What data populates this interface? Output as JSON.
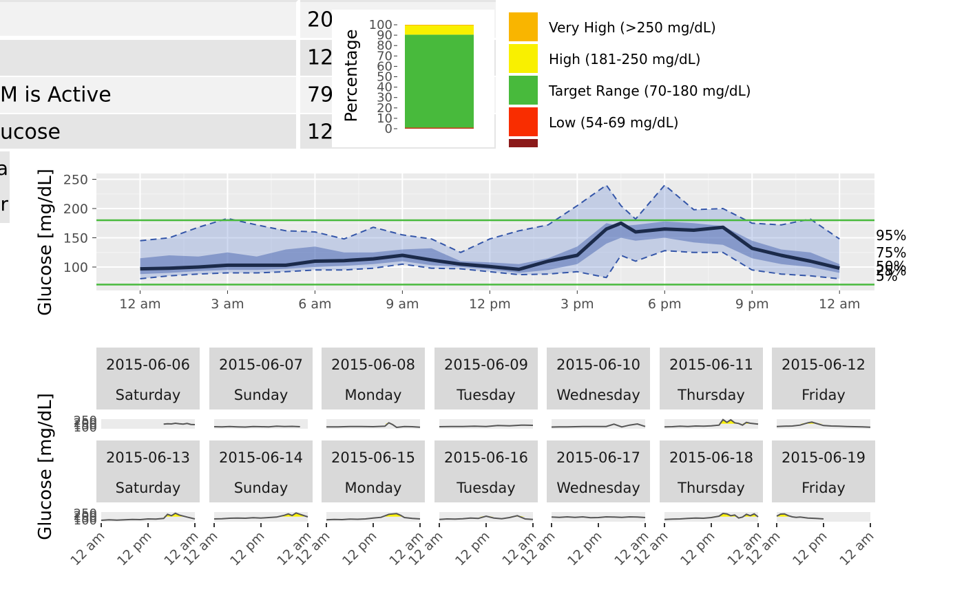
{
  "stats_table": {
    "rows": [
      {
        "label": "",
        "value": "20"
      },
      {
        "label": "",
        "value": "12"
      },
      {
        "label": "M is Active",
        "value": "79"
      },
      {
        "label": "ucose",
        "value": "12"
      }
    ],
    "extra_labels": [
      "a",
      "r"
    ]
  },
  "range_bar": {
    "ylabel": "Percentage",
    "ticks": [
      "0",
      "10",
      "20",
      "30",
      "40",
      "50",
      "60",
      "70",
      "80",
      "90",
      "100"
    ],
    "segments": [
      {
        "name": "Very Low",
        "percent": 0.4,
        "color": "#8b1a1a"
      },
      {
        "name": "Low",
        "percent": 0.6,
        "color": "#f92d00"
      },
      {
        "name": "Target Range",
        "percent": 89.5,
        "color": "#48ba3c"
      },
      {
        "name": "High",
        "percent": 8.8,
        "color": "#f9f000"
      },
      {
        "name": "Very High",
        "percent": 0.7,
        "color": "#f9b500"
      }
    ]
  },
  "legend": {
    "items": [
      {
        "label": "Very High (>250 mg/dL)",
        "color": "#f9b500"
      },
      {
        "label": "High (181-250 mg/dL)",
        "color": "#f9f000"
      },
      {
        "label": "Target Range (70-180 mg/dL)",
        "color": "#48ba3c"
      },
      {
        "label": "Low (54-69 mg/dL)",
        "color": "#f92d00"
      },
      {
        "label": "",
        "color": "#8b1a1a"
      }
    ]
  },
  "chart_data": [
    {
      "type": "area",
      "title": "",
      "ylabel": "Glucose [mg/dL]",
      "xlabel": "",
      "x_unit": "hours since midnight",
      "ylim": [
        60,
        260
      ],
      "xlim": [
        -1.5,
        25.2
      ],
      "x_tick_values": [
        0,
        3,
        6,
        9,
        12,
        15,
        18,
        21,
        24
      ],
      "x_tick_labels": [
        "12 am",
        "3 am",
        "6 am",
        "9 am",
        "12 pm",
        "3 pm",
        "6 pm",
        "9 pm",
        "12 am"
      ],
      "y_ticks": [
        100,
        150,
        200,
        250
      ],
      "target_lines": [
        70,
        180
      ],
      "percentile_labels": [
        "95%",
        "75%",
        "50%",
        "25%",
        "5%"
      ],
      "x": [
        0,
        1,
        2,
        3,
        4,
        5,
        6,
        7,
        8,
        9,
        10,
        11,
        12,
        13,
        14,
        15,
        16,
        16.5,
        17,
        18,
        19,
        20,
        21,
        22,
        23,
        24
      ],
      "series": [
        {
          "name": "p95",
          "values": [
            145,
            150,
            168,
            183,
            172,
            162,
            160,
            148,
            168,
            155,
            148,
            125,
            148,
            162,
            172,
            205,
            240,
            205,
            182,
            240,
            198,
            200,
            175,
            172,
            182,
            148
          ]
        },
        {
          "name": "p75",
          "values": [
            115,
            120,
            118,
            125,
            118,
            130,
            135,
            125,
            125,
            130,
            132,
            110,
            108,
            105,
            115,
            135,
            175,
            170,
            172,
            178,
            175,
            170,
            145,
            130,
            125,
            105
          ]
        },
        {
          "name": "p50",
          "values": [
            97,
            98,
            100,
            103,
            103,
            103,
            110,
            111,
            114,
            120,
            112,
            105,
            101,
            96,
            110,
            120,
            165,
            175,
            160,
            165,
            163,
            168,
            132,
            120,
            110,
            98
          ]
        },
        {
          "name": "p25",
          "values": [
            88,
            90,
            93,
            95,
            95,
            97,
            100,
            102,
            105,
            110,
            103,
            100,
            96,
            90,
            95,
            105,
            140,
            150,
            145,
            150,
            142,
            138,
            115,
            105,
            100,
            90
          ]
        },
        {
          "name": "p5",
          "values": [
            80,
            85,
            88,
            90,
            90,
            92,
            95,
            95,
            98,
            105,
            98,
            97,
            92,
            87,
            88,
            92,
            82,
            120,
            110,
            128,
            125,
            125,
            95,
            88,
            85,
            80
          ]
        }
      ]
    },
    {
      "type": "line",
      "title": "",
      "ylabel": "Glucose [mg/dL]",
      "y_ticks": [
        100,
        150,
        200,
        250
      ],
      "y_tick_labels": [
        "100",
        "150",
        "200",
        "250"
      ],
      "ylim": [
        70,
        280
      ],
      "x_unit": "hours since midnight",
      "x_tick_labels": [
        "12 am",
        "12 pm",
        "12 am"
      ],
      "x_tick_values": [
        0,
        12,
        24
      ],
      "facets": [
        {
          "date": "2015-06-06",
          "weekday": "Saturday",
          "x": [
            16,
            17,
            18,
            19,
            20,
            21,
            22,
            23,
            24
          ],
          "values": [
            170,
            180,
            175,
            190,
            178,
            172,
            185,
            165,
            160
          ]
        },
        {
          "date": "2015-06-07",
          "weekday": "Sunday",
          "x": [
            0,
            2,
            4,
            6,
            8,
            10,
            12,
            14,
            16,
            18,
            20,
            22
          ],
          "values": [
            115,
            110,
            118,
            112,
            108,
            120,
            115,
            110,
            125,
            118,
            122,
            115
          ]
        },
        {
          "date": "2015-06-08",
          "weekday": "Monday",
          "x": [
            0,
            3,
            6,
            9,
            12,
            15,
            16,
            17,
            18,
            20,
            22,
            24
          ],
          "values": [
            110,
            112,
            118,
            120,
            115,
            125,
            200,
            160,
            100,
            120,
            115,
            105
          ]
        },
        {
          "date": "2015-06-09",
          "weekday": "Tuesday",
          "x": [
            0,
            3,
            6,
            9,
            12,
            15,
            18,
            21,
            24
          ],
          "values": [
            115,
            120,
            118,
            125,
            120,
            140,
            135,
            150,
            145
          ]
        },
        {
          "date": "2015-06-10",
          "weekday": "Wednesday",
          "x": [
            0,
            2,
            4,
            6,
            8,
            14,
            16,
            18,
            20,
            22,
            24
          ],
          "values": [
            108,
            112,
            110,
            115,
            118,
            120,
            170,
            110,
            150,
            175,
            120
          ]
        },
        {
          "date": "2015-06-11",
          "weekday": "Thursday",
          "x": [
            0,
            2,
            4,
            6,
            8,
            10,
            12,
            14,
            15,
            16,
            17,
            18,
            19,
            20,
            21,
            22,
            24
          ],
          "values": [
            110,
            115,
            125,
            120,
            130,
            125,
            135,
            150,
            270,
            210,
            265,
            200,
            185,
            150,
            210,
            190,
            170
          ]
        },
        {
          "date": "2015-06-12",
          "weekday": "Friday",
          "x": [
            0,
            2,
            4,
            6,
            8,
            9,
            10,
            12,
            14,
            16,
            18,
            20,
            22,
            24
          ],
          "values": [
            120,
            125,
            130,
            150,
            200,
            215,
            190,
            140,
            130,
            125,
            120,
            115,
            110,
            105
          ]
        },
        {
          "date": "2015-06-13",
          "weekday": "Saturday",
          "x": [
            0,
            2,
            4,
            6,
            8,
            10,
            12,
            14,
            16,
            17,
            18,
            19,
            20,
            22,
            24
          ],
          "values": [
            100,
            110,
            105,
            112,
            120,
            115,
            130,
            125,
            140,
            230,
            200,
            255,
            215,
            170,
            130
          ]
        },
        {
          "date": "2015-06-14",
          "weekday": "Sunday",
          "x": [
            0,
            2,
            4,
            6,
            8,
            10,
            12,
            14,
            16,
            18,
            19,
            20,
            21,
            22,
            24
          ],
          "values": [
            130,
            135,
            145,
            150,
            145,
            155,
            150,
            160,
            170,
            210,
            240,
            205,
            260,
            230,
            175
          ]
        },
        {
          "date": "2015-06-15",
          "weekday": "Monday",
          "x": [
            0,
            2,
            4,
            6,
            8,
            10,
            12,
            14,
            16,
            18,
            19,
            20,
            22,
            24
          ],
          "values": [
            110,
            118,
            115,
            125,
            122,
            130,
            150,
            165,
            230,
            245,
            210,
            160,
            140,
            130
          ]
        },
        {
          "date": "2015-06-16",
          "weekday": "Tuesday",
          "x": [
            0,
            2,
            4,
            6,
            8,
            10,
            12,
            14,
            16,
            18,
            20,
            22,
            24
          ],
          "values": [
            120,
            130,
            125,
            135,
            150,
            140,
            190,
            150,
            135,
            160,
            200,
            130,
            120
          ]
        },
        {
          "date": "2015-06-17",
          "weekday": "Wednesday",
          "x": [
            0,
            2,
            4,
            6,
            8,
            10,
            12,
            14,
            16,
            18,
            20,
            22,
            24
          ],
          "values": [
            170,
            165,
            175,
            165,
            175,
            155,
            160,
            175,
            170,
            165,
            175,
            170,
            160
          ]
        },
        {
          "date": "2015-06-18",
          "weekday": "Thursday",
          "x": [
            0,
            2,
            4,
            6,
            8,
            10,
            12,
            14,
            15,
            16,
            17,
            18,
            19,
            20,
            21,
            22,
            23,
            24
          ],
          "values": [
            120,
            125,
            130,
            140,
            150,
            145,
            160,
            190,
            250,
            240,
            200,
            215,
            150,
            170,
            230,
            200,
            240,
            175
          ]
        },
        {
          "date": "2015-06-19",
          "weekday": "Friday",
          "x": [
            0,
            1,
            2,
            3,
            4,
            5,
            6,
            8,
            10,
            12
          ],
          "values": [
            190,
            235,
            240,
            200,
            175,
            165,
            170,
            150,
            140,
            130
          ]
        }
      ]
    }
  ]
}
